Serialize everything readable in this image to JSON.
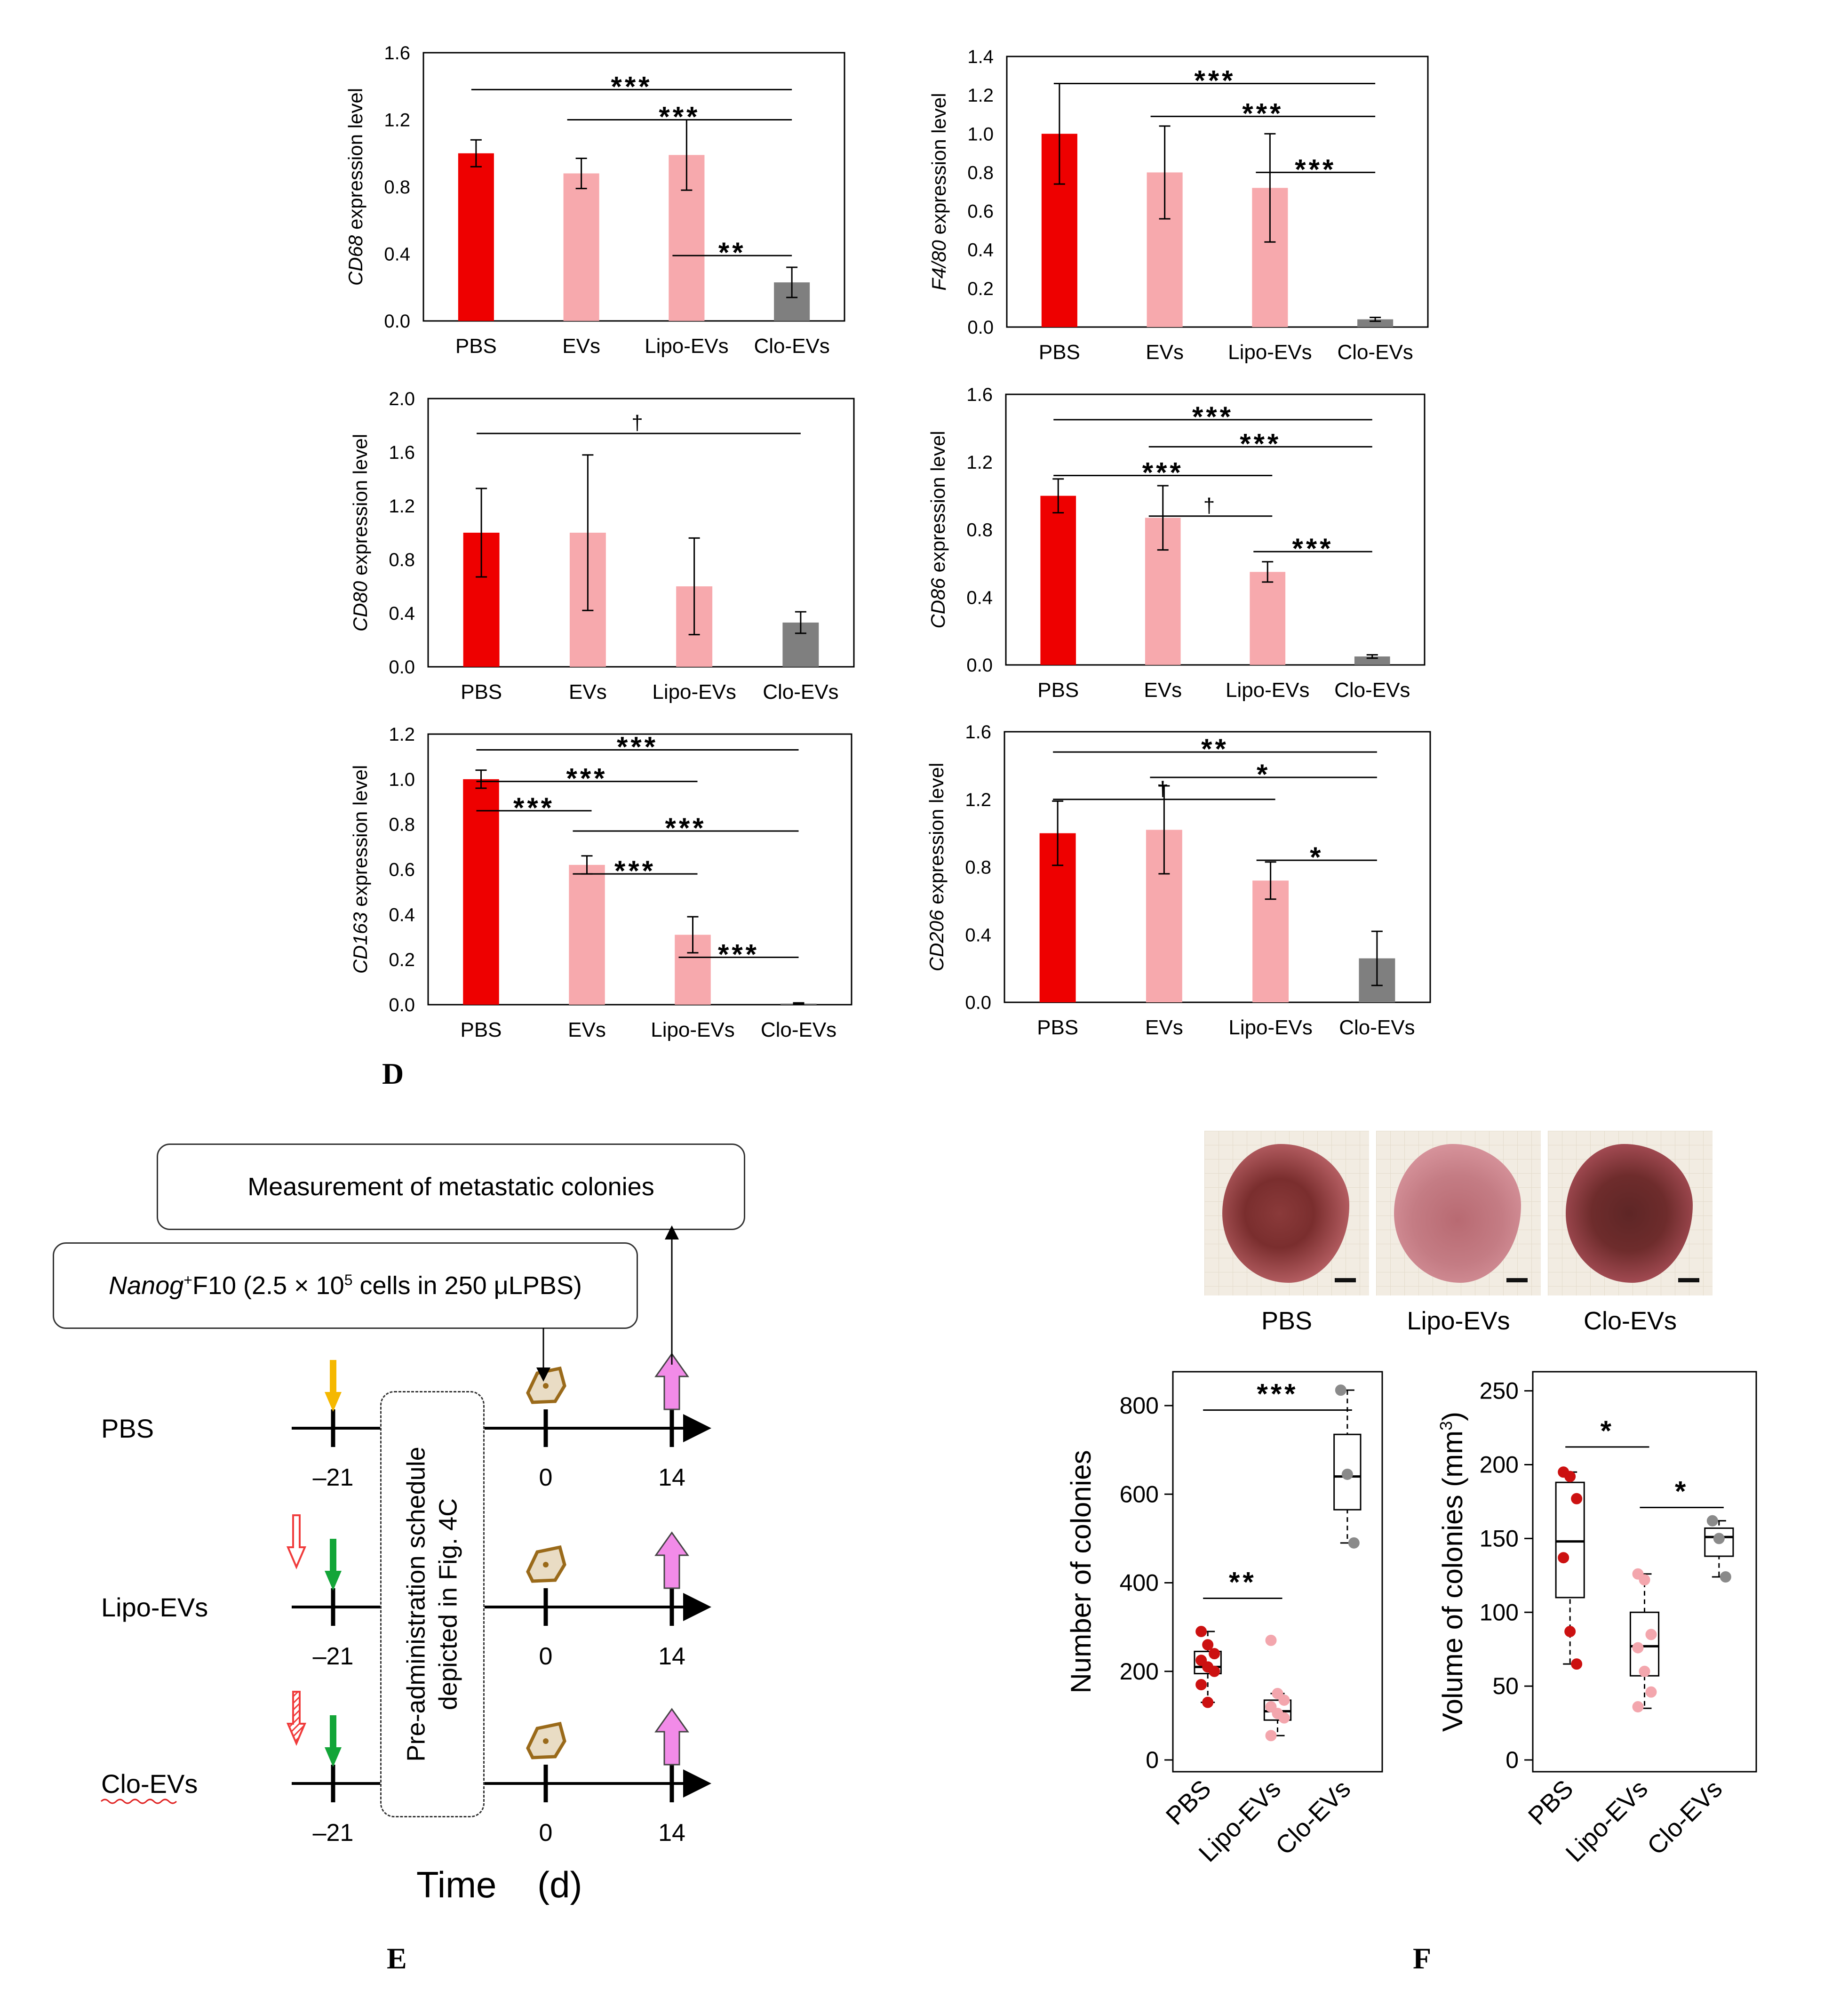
{
  "chart_data": [
    {
      "type": "bar",
      "id": "cd68",
      "gene": "CD68",
      "ylabel_suffix": " expression level",
      "categories": [
        "PBS",
        "EVs",
        "Lipo-EVs",
        "Clo-EVs"
      ],
      "values": [
        1.0,
        0.88,
        0.99,
        0.23
      ],
      "errors": [
        0.08,
        0.09,
        0.21,
        0.09
      ],
      "colors": [
        "#ee0000",
        "#f7a9ad",
        "#f7a9ad",
        "#7f7f7f"
      ],
      "ylim": [
        0,
        1.6
      ],
      "ticks": [
        "0.0",
        "0.4",
        "0.8",
        "1.2",
        "1.6"
      ],
      "brackets": [
        {
          "from": 0,
          "to": 3,
          "level": 1.38,
          "label": "***"
        },
        {
          "from": 1,
          "to": 3,
          "level": 1.2,
          "label": "***"
        },
        {
          "from": 2,
          "to": 3,
          "level": 0.39,
          "label": "**"
        }
      ]
    },
    {
      "type": "bar",
      "id": "f480",
      "gene": "F4/80",
      "ylabel_suffix": " expression level",
      "categories": [
        "PBS",
        "EVs",
        "Lipo-EVs",
        "Clo-EVs"
      ],
      "values": [
        1.0,
        0.8,
        0.72,
        0.04
      ],
      "errors": [
        0.26,
        0.24,
        0.28,
        0.01
      ],
      "colors": [
        "#ee0000",
        "#f7a9ad",
        "#f7a9ad",
        "#7f7f7f"
      ],
      "ylim": [
        0,
        1.4
      ],
      "ticks": [
        "0.0",
        "0.2",
        "0.4",
        "0.6",
        "0.8",
        "1.0",
        "1.2",
        "1.4"
      ],
      "brackets": [
        {
          "from": 0,
          "to": 3,
          "level": 1.26,
          "label": "***"
        },
        {
          "from": 1,
          "to": 3,
          "level": 1.09,
          "label": "***"
        },
        {
          "from": 2,
          "to": 3,
          "level": 0.8,
          "label": "***"
        }
      ]
    },
    {
      "type": "bar",
      "id": "cd80",
      "gene": "CD80",
      "ylabel_suffix": " expression level",
      "categories": [
        "PBS",
        "EVs",
        "Lipo-EVs",
        "Clo-EVs"
      ],
      "values": [
        1.0,
        1.0,
        0.6,
        0.33
      ],
      "errors": [
        0.33,
        0.58,
        0.36,
        0.08
      ],
      "colors": [
        "#ee0000",
        "#f7a9ad",
        "#f7a9ad",
        "#7f7f7f"
      ],
      "ylim": [
        0,
        2.0
      ],
      "ticks": [
        "0.0",
        "0.4",
        "0.8",
        "1.2",
        "1.6",
        "2.0"
      ],
      "brackets": [
        {
          "from": 0,
          "to": 3,
          "level": 1.74,
          "label": "†"
        }
      ]
    },
    {
      "type": "bar",
      "id": "cd86",
      "gene": "CD86",
      "ylabel_suffix": " expression level",
      "categories": [
        "PBS",
        "EVs",
        "Lipo-EVs",
        "Clo-EVs"
      ],
      "values": [
        1.0,
        0.87,
        0.55,
        0.05
      ],
      "errors": [
        0.1,
        0.19,
        0.06,
        0.01
      ],
      "colors": [
        "#ee0000",
        "#f7a9ad",
        "#f7a9ad",
        "#7f7f7f"
      ],
      "ylim": [
        0,
        1.6
      ],
      "ticks": [
        "0.0",
        "0.4",
        "0.8",
        "1.2",
        "1.6"
      ],
      "brackets": [
        {
          "from": 0,
          "to": 3,
          "level": 1.45,
          "label": "***"
        },
        {
          "from": 1,
          "to": 3,
          "level": 1.29,
          "label": "***"
        },
        {
          "from": 0,
          "to": 2,
          "level": 1.12,
          "label": "***"
        },
        {
          "from": 1,
          "to": 2,
          "level": 0.88,
          "label": "†"
        },
        {
          "from": 2,
          "to": 3,
          "level": 0.67,
          "label": "***"
        }
      ]
    },
    {
      "type": "bar",
      "id": "cd163",
      "gene": "CD163",
      "ylabel_suffix": " expression level",
      "categories": [
        "PBS",
        "EVs",
        "Lipo-EVs",
        "Clo-EVs"
      ],
      "values": [
        1.0,
        0.62,
        0.31,
        0.005
      ],
      "errors": [
        0.04,
        0.04,
        0.08,
        0.003
      ],
      "colors": [
        "#ee0000",
        "#f7a9ad",
        "#f7a9ad",
        "#7f7f7f"
      ],
      "ylim": [
        0,
        1.2
      ],
      "ticks": [
        "0.0",
        "0.2",
        "0.4",
        "0.6",
        "0.8",
        "1.0",
        "1.2"
      ],
      "brackets": [
        {
          "from": 0,
          "to": 3,
          "level": 1.13,
          "label": "***"
        },
        {
          "from": 0,
          "to": 2,
          "level": 0.99,
          "label": "***"
        },
        {
          "from": 0,
          "to": 1,
          "level": 0.86,
          "label": "***"
        },
        {
          "from": 1,
          "to": 3,
          "level": 0.77,
          "label": "***"
        },
        {
          "from": 1,
          "to": 2,
          "level": 0.58,
          "label": "***"
        },
        {
          "from": 2,
          "to": 3,
          "level": 0.21,
          "label": "***"
        }
      ]
    },
    {
      "type": "bar",
      "id": "cd206",
      "gene": "CD206",
      "ylabel_suffix": " expression level",
      "categories": [
        "PBS",
        "EVs",
        "Lipo-EVs",
        "Clo-EVs"
      ],
      "values": [
        1.0,
        1.02,
        0.72,
        0.26
      ],
      "errors": [
        0.19,
        0.26,
        0.11,
        0.16
      ],
      "colors": [
        "#ee0000",
        "#f7a9ad",
        "#f7a9ad",
        "#7f7f7f"
      ],
      "ylim": [
        0,
        1.6
      ],
      "ticks": [
        "0.0",
        "0.4",
        "0.8",
        "1.2",
        "1.6"
      ],
      "brackets": [
        {
          "from": 0,
          "to": 3,
          "level": 1.48,
          "label": "**"
        },
        {
          "from": 1,
          "to": 3,
          "level": 1.33,
          "label": "*"
        },
        {
          "from": 0,
          "to": 2,
          "level": 1.2,
          "label": "†"
        },
        {
          "from": 2,
          "to": 3,
          "level": 0.84,
          "label": "*"
        }
      ]
    },
    {
      "type": "box",
      "id": "colonies_number",
      "ylabel": "Number of colonies",
      "categories": [
        "PBS",
        "Lipo-EVs",
        "Clo-EVs"
      ],
      "ylim": [
        0,
        850
      ],
      "ticks": [
        "0",
        "200",
        "400",
        "600",
        "800"
      ],
      "boxes": [
        {
          "q1": 195,
          "median": 210,
          "q3": 245,
          "whisker_low": 130,
          "whisker_high": 290
        },
        {
          "q1": 90,
          "median": 110,
          "q3": 135,
          "whisker_low": 55,
          "whisker_high": 150
        },
        {
          "q1": 565,
          "median": 640,
          "q3": 735,
          "whisker_low": 490,
          "whisker_high": 835
        }
      ],
      "points": [
        [
          290,
          260,
          240,
          225,
          210,
          200,
          170,
          130
        ],
        [
          270,
          150,
          135,
          120,
          105,
          95,
          55
        ],
        [
          835,
          645,
          490
        ]
      ],
      "point_colors": [
        "#cc1111",
        "#f3a6ad",
        "#8a8a8a"
      ],
      "brackets": [
        {
          "from": 0,
          "to": 2,
          "level": 790,
          "label": "***"
        },
        {
          "from": 0,
          "to": 1,
          "level": 365,
          "label": "**"
        }
      ]
    },
    {
      "type": "box",
      "id": "colonies_volume",
      "ylabel": "Volume of colonies (mm",
      "ylabel_sup": "3",
      "ylabel_end": ")",
      "categories": [
        "PBS",
        "Lipo-EVs",
        "Clo-EVs"
      ],
      "ylim": [
        0,
        255
      ],
      "ticks": [
        "0",
        "50",
        "100",
        "150",
        "200",
        "250"
      ],
      "boxes": [
        {
          "q1": 110,
          "median": 148,
          "q3": 188,
          "whisker_low": 65,
          "whisker_high": 195
        },
        {
          "q1": 57,
          "median": 77,
          "q3": 100,
          "whisker_low": 35,
          "whisker_high": 126
        },
        {
          "q1": 138,
          "median": 151,
          "q3": 157,
          "whisker_low": 124,
          "whisker_high": 162
        }
      ],
      "points": [
        [
          195,
          192,
          177,
          137,
          87,
          65
        ],
        [
          126,
          122,
          85,
          76,
          60,
          46,
          36
        ],
        [
          162,
          150,
          124
        ]
      ],
      "point_colors": [
        "#cc1111",
        "#f3a6ad",
        "#8a8a8a"
      ],
      "brackets": [
        {
          "from": 0,
          "to": 1,
          "level": 212,
          "label": "*"
        },
        {
          "from": 1,
          "to": 2,
          "level": 171,
          "label": "*"
        }
      ]
    }
  ],
  "panel_labels": {
    "d": "D",
    "e": "E",
    "f": "F"
  },
  "timeline": {
    "measurement_label": "Measurement of metastatic colonies",
    "injection_gene": "Nanog",
    "injection_sup": "+",
    "injection_text": "F10 (2.5 × 10",
    "injection_exp": "5",
    "injection_end": " cells in 250 μLPBS)",
    "pre_admin_line1": "Pre-administration schedule",
    "pre_admin_line2": "depicted in Fig. 4C",
    "rows": [
      "PBS",
      "Lipo-EVs",
      "Clo-EVs"
    ],
    "ticks": [
      "–21",
      "0",
      "14"
    ],
    "xlabel": "Time    (d)",
    "colors": {
      "yellow": "#f5b800",
      "green": "#13a538",
      "red": "#f03c3c",
      "pink": "#f28be8",
      "tumor": "#9a6a1a"
    }
  },
  "photos": {
    "labels": [
      "PBS",
      "Lipo-EVs",
      "Clo-EVs"
    ]
  }
}
